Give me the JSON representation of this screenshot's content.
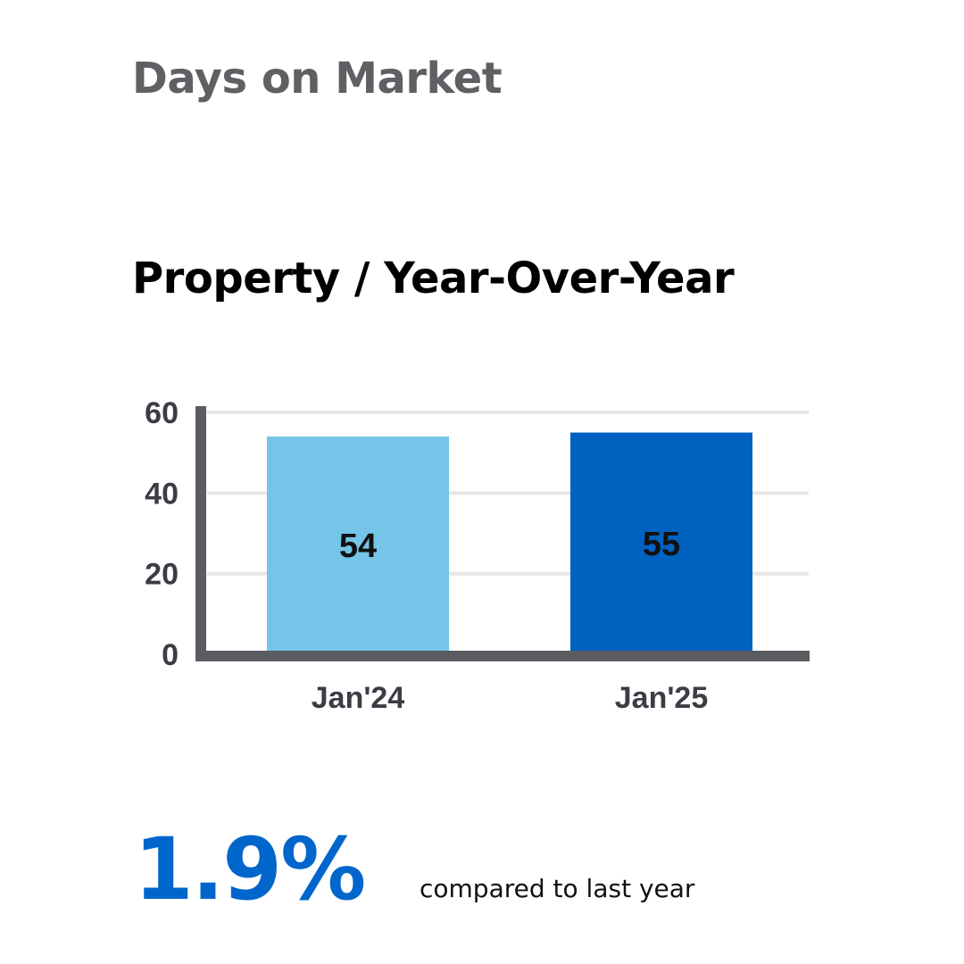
{
  "header": {
    "title": "Days on Market",
    "subtitle": "Property / Year-Over-Year"
  },
  "summary": {
    "change": "1.9%",
    "caption": "compared to last year"
  },
  "colors": {
    "title": "#5f6064",
    "accent": "#0066cc",
    "bar_prev": "#74c5e8",
    "bar_curr": "#0062c0",
    "axis": "#5b5c61",
    "grid": "#e6e6e6"
  },
  "chart_data": {
    "type": "bar",
    "title": "Property / Year-Over-Year",
    "xlabel": "",
    "ylabel": "",
    "categories": [
      "Jan'24",
      "Jan'25"
    ],
    "values": [
      54,
      55
    ],
    "data_labels": [
      "54",
      "55"
    ],
    "bar_colors": [
      "#74c5e8",
      "#0062c0"
    ],
    "ylim": [
      0,
      60
    ],
    "yticks": [
      0,
      20,
      40,
      60
    ],
    "ytick_labels": [
      "0",
      "20",
      "40",
      "60"
    ],
    "grid": true,
    "legend": "none"
  }
}
